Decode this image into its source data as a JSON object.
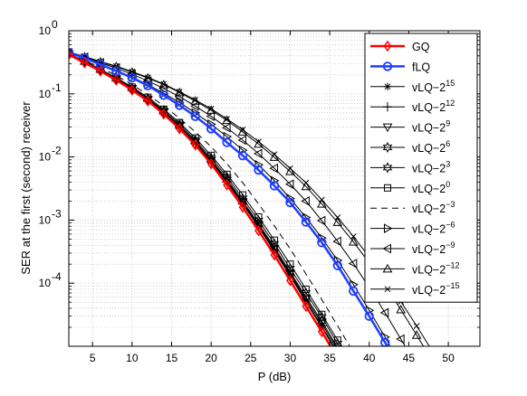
{
  "chart_data": {
    "type": "line",
    "title": "",
    "xlabel": "P (dB)",
    "ylabel": "SER at the first (second) receiver",
    "xlim": [
      2,
      54
    ],
    "ylim_log10": [
      -5,
      0
    ],
    "yscale": "log",
    "grid": "on (major solid, minor dotted)",
    "legend_position": "top-right",
    "xticks": [
      "5",
      "10",
      "15",
      "20",
      "25",
      "30",
      "35",
      "40",
      "45",
      "50"
    ],
    "yticks": [
      {
        "base": "10",
        "exp": "0"
      },
      {
        "base": "10",
        "exp": "-1"
      },
      {
        "base": "10",
        "exp": "-2"
      },
      {
        "base": "10",
        "exp": "-3"
      },
      {
        "base": "10",
        "exp": "-4"
      }
    ],
    "series": [
      {
        "name": "GQ",
        "base": "GQ",
        "exp": "",
        "color": "#ff0000",
        "marker": "diamond",
        "dash": "",
        "width": 2.5,
        "x": [
          2,
          4,
          6,
          8,
          10,
          12,
          14,
          16,
          18,
          20,
          22,
          24,
          26,
          28,
          30,
          32,
          34,
          36,
          38
        ],
        "y": [
          0.42,
          0.31,
          0.23,
          0.165,
          0.115,
          0.077,
          0.048,
          0.028,
          0.0155,
          0.0078,
          0.0036,
          0.0016,
          0.00068,
          0.00028,
          0.00011,
          4.3e-05,
          1.7e-05,
          6.5e-06,
          2.5e-06
        ]
      },
      {
        "name": "fLQ",
        "base": "fLQ",
        "exp": "",
        "color": "#1f3fff",
        "marker": "circle",
        "dash": "",
        "width": 2.5,
        "x": [
          2,
          4,
          6,
          8,
          10,
          12,
          14,
          16,
          18,
          20,
          22,
          24,
          26,
          28,
          30,
          32,
          34,
          36,
          38,
          40,
          42,
          44
        ],
        "y": [
          0.45,
          0.37,
          0.29,
          0.23,
          0.18,
          0.135,
          0.095,
          0.066,
          0.044,
          0.028,
          0.017,
          0.0105,
          0.0062,
          0.0035,
          0.0019,
          0.00093,
          0.00044,
          0.00019,
          7.5e-05,
          3e-05,
          1.15e-05,
          4.5e-06
        ]
      },
      {
        "name": "vLQ-2^15",
        "base": "vLQ−2",
        "exp": "15",
        "color": "#000000",
        "marker": "star",
        "dash": "",
        "width": 1,
        "x": [
          2,
          4,
          6,
          8,
          10,
          12,
          14,
          16,
          18,
          20,
          22,
          24,
          26,
          28,
          30,
          32,
          34,
          36,
          38
        ],
        "y": [
          0.43,
          0.32,
          0.235,
          0.17,
          0.12,
          0.08,
          0.05,
          0.03,
          0.0165,
          0.0084,
          0.004,
          0.0018,
          0.00078,
          0.00032,
          0.00013,
          5e-05,
          2e-05,
          7.5e-06,
          2.8e-06
        ]
      },
      {
        "name": "vLQ-2^12",
        "base": "vLQ−2",
        "exp": "12",
        "color": "#000000",
        "marker": "plus",
        "dash": "",
        "width": 1,
        "x": [
          2,
          4,
          6,
          8,
          10,
          12,
          14,
          16,
          18,
          20,
          22,
          24,
          26,
          28,
          30,
          32,
          34,
          36,
          38
        ],
        "y": [
          0.43,
          0.32,
          0.235,
          0.17,
          0.12,
          0.08,
          0.05,
          0.03,
          0.0165,
          0.0084,
          0.004,
          0.0018,
          0.0008,
          0.00033,
          0.000135,
          5.2e-05,
          2.1e-05,
          8e-06,
          3e-06
        ]
      },
      {
        "name": "vLQ-2^9",
        "base": "vLQ−2",
        "exp": "9",
        "color": "#000000",
        "marker": "triangle-down",
        "dash": "",
        "width": 1,
        "x": [
          2,
          4,
          6,
          8,
          10,
          12,
          14,
          16,
          18,
          20,
          22,
          24,
          26,
          28,
          30,
          32,
          34,
          36,
          38
        ],
        "y": [
          0.43,
          0.32,
          0.237,
          0.172,
          0.121,
          0.081,
          0.051,
          0.031,
          0.017,
          0.0087,
          0.0042,
          0.0019,
          0.00083,
          0.00035,
          0.000142,
          5.6e-05,
          2.3e-05,
          8.8e-06,
          3.4e-06
        ]
      },
      {
        "name": "vLQ-2^6",
        "base": "vLQ−2",
        "exp": "6",
        "color": "#000000",
        "marker": "hexagram",
        "dash": "",
        "width": 1,
        "x": [
          2,
          4,
          6,
          8,
          10,
          12,
          14,
          16,
          18,
          20,
          22,
          24,
          26,
          28,
          30,
          32,
          34,
          36,
          38
        ],
        "y": [
          0.43,
          0.32,
          0.238,
          0.173,
          0.122,
          0.082,
          0.052,
          0.031,
          0.0175,
          0.009,
          0.0044,
          0.002,
          0.00088,
          0.00037,
          0.00015,
          6e-05,
          2.5e-05,
          9.5e-06,
          3.7e-06
        ]
      },
      {
        "name": "vLQ-2^3",
        "base": "vLQ−2",
        "exp": "3",
        "color": "#000000",
        "marker": "hexagram-open",
        "dash": "",
        "width": 1,
        "x": [
          2,
          4,
          6,
          8,
          10,
          12,
          14,
          16,
          18,
          20,
          22,
          24,
          26,
          28,
          30,
          32,
          34,
          36,
          38
        ],
        "y": [
          0.43,
          0.32,
          0.24,
          0.175,
          0.124,
          0.084,
          0.054,
          0.033,
          0.0185,
          0.0097,
          0.0048,
          0.0022,
          0.00098,
          0.00042,
          0.00017,
          7e-05,
          2.9e-05,
          1.1e-05,
          4.2e-06
        ]
      },
      {
        "name": "vLQ-2^0",
        "base": "vLQ−2",
        "exp": "0",
        "color": "#000000",
        "marker": "square",
        "dash": "",
        "width": 1,
        "x": [
          2,
          4,
          6,
          8,
          10,
          12,
          14,
          16,
          18,
          20,
          22,
          24,
          26,
          28,
          30,
          32,
          34,
          36,
          38,
          39
        ],
        "y": [
          0.43,
          0.33,
          0.245,
          0.18,
          0.128,
          0.088,
          0.057,
          0.035,
          0.02,
          0.0106,
          0.0053,
          0.0025,
          0.00112,
          0.00048,
          0.0002,
          8e-05,
          3.2e-05,
          1.25e-05,
          5e-06,
          3e-06
        ]
      },
      {
        "name": "vLQ-2^-3",
        "base": "vLQ−2",
        "exp": "−3",
        "color": "#000000",
        "marker": "none",
        "dash": "7,5",
        "width": 1,
        "x": [
          2,
          4,
          6,
          8,
          10,
          12,
          14,
          16,
          18,
          20,
          22,
          24,
          26,
          28,
          30,
          32,
          34,
          36,
          38,
          40
        ],
        "y": [
          0.44,
          0.34,
          0.26,
          0.195,
          0.14,
          0.097,
          0.065,
          0.041,
          0.025,
          0.0145,
          0.0078,
          0.0039,
          0.0018,
          0.00081,
          0.00035,
          0.00014,
          5.5e-05,
          2.1e-05,
          8e-06,
          3e-06
        ]
      },
      {
        "name": "vLQ-2^-6",
        "base": "vLQ−2",
        "exp": "−6",
        "color": "#000000",
        "marker": "triangle-right",
        "dash": "",
        "width": 1,
        "x": [
          2,
          4,
          6,
          8,
          10,
          12,
          14,
          16,
          18,
          20,
          22,
          24,
          26,
          28,
          30,
          32,
          34,
          36,
          38,
          40,
          42,
          44,
          46
        ],
        "y": [
          0.45,
          0.37,
          0.295,
          0.235,
          0.185,
          0.14,
          0.102,
          0.073,
          0.05,
          0.033,
          0.021,
          0.0128,
          0.0075,
          0.0042,
          0.0022,
          0.0011,
          0.00052,
          0.00023,
          9.5e-05,
          3.7e-05,
          1.4e-05,
          5e-06,
          1.8e-06
        ]
      },
      {
        "name": "vLQ-2^-9",
        "base": "vLQ−2",
        "exp": "−9",
        "color": "#000000",
        "marker": "triangle-left",
        "dash": "",
        "width": 1,
        "x": [
          2,
          4,
          6,
          8,
          10,
          12,
          14,
          16,
          18,
          20,
          22,
          24,
          26,
          28,
          30,
          32,
          34,
          36,
          38,
          40,
          42,
          44,
          46,
          48
        ],
        "y": [
          0.45,
          0.38,
          0.31,
          0.255,
          0.205,
          0.16,
          0.122,
          0.09,
          0.064,
          0.044,
          0.029,
          0.0185,
          0.0113,
          0.0066,
          0.0037,
          0.002,
          0.00098,
          0.00046,
          0.000205,
          8.5e-05,
          3.4e-05,
          1.3e-05,
          5e-06,
          1.9e-06
        ]
      },
      {
        "name": "vLQ-2^-12",
        "base": "vLQ−2",
        "exp": "−12",
        "color": "#000000",
        "marker": "triangle-up",
        "dash": "",
        "width": 1,
        "x": [
          2,
          4,
          6,
          8,
          10,
          12,
          14,
          16,
          18,
          20,
          22,
          24,
          26,
          28,
          30,
          32,
          34,
          36,
          38,
          40,
          42,
          44,
          46,
          48,
          50
        ],
        "y": [
          0.46,
          0.385,
          0.32,
          0.27,
          0.22,
          0.178,
          0.14,
          0.105,
          0.077,
          0.055,
          0.038,
          0.025,
          0.016,
          0.0099,
          0.0059,
          0.0034,
          0.0018,
          0.00092,
          0.00045,
          0.00021,
          9.2e-05,
          3.8e-05,
          1.5e-05,
          5.8e-06,
          2.2e-06
        ]
      },
      {
        "name": "vLQ-2^-15",
        "base": "vLQ−2",
        "exp": "−15",
        "color": "#000000",
        "marker": "x",
        "dash": "",
        "width": 1,
        "x": [
          2,
          4,
          6,
          8,
          10,
          12,
          14,
          16,
          18,
          20,
          22,
          24,
          26,
          28,
          30,
          32,
          34,
          36,
          38,
          40,
          42,
          44,
          46,
          48,
          50,
          52,
          54
        ],
        "y": [
          0.46,
          0.39,
          0.325,
          0.275,
          0.225,
          0.182,
          0.143,
          0.108,
          0.08,
          0.058,
          0.04,
          0.027,
          0.0175,
          0.011,
          0.0066,
          0.0039,
          0.0021,
          0.0011,
          0.00055,
          0.00026,
          0.000118,
          5.1e-05,
          2.1e-05,
          8.3e-06,
          3.2e-06,
          1.5e-06,
          1e-06
        ]
      }
    ]
  }
}
